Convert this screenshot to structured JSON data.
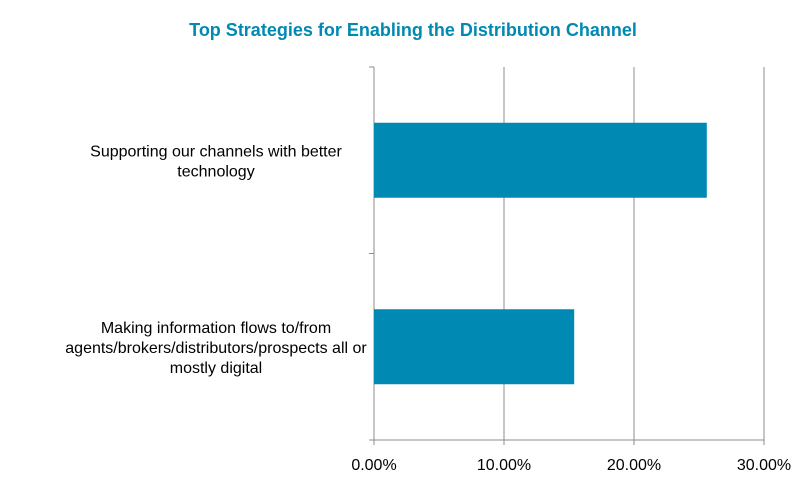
{
  "chart_data": {
    "type": "bar",
    "orientation": "horizontal",
    "title": "Top Strategies for Enabling the Distribution Channel",
    "categories": [
      [
        "Supporting our channels with better",
        "technology"
      ],
      [
        "Making information flows to/from",
        "agents/brokers/distributors/prospects all or",
        "mostly digital"
      ]
    ],
    "values": [
      25.6,
      15.4
    ],
    "xlabel": "",
    "ylabel": "",
    "xlim": [
      0,
      30
    ],
    "xticks": [
      0,
      10,
      20,
      30
    ],
    "xtick_labels": [
      "0.00%",
      "10.00%",
      "20.00%",
      "30.00%"
    ],
    "grid": "vertical",
    "legend": "none",
    "colors": {
      "bar": "#0089b2",
      "title": "#0089b2",
      "grid": "#8c8c8c"
    }
  }
}
